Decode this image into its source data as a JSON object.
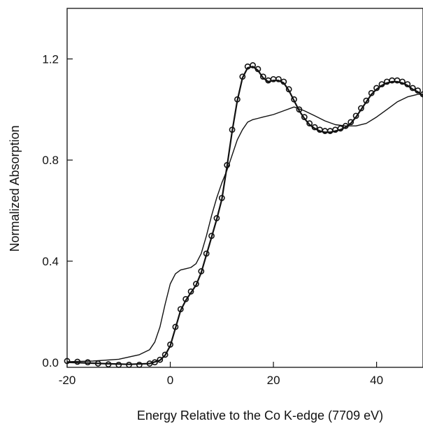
{
  "chart_data": {
    "type": "line",
    "title": "",
    "xlabel": "Energy Relative to the Co K-edge (7709 eV)",
    "ylabel": "Normalized Absorption",
    "xlim": [
      -20,
      49
    ],
    "ylim": [
      -0.02,
      1.4
    ],
    "xticks": [
      -20,
      0,
      20,
      40
    ],
    "xtick_labels": [
      "-20",
      "0",
      "20",
      "40"
    ],
    "yticks": [
      0.0,
      0.4,
      0.8,
      1.2
    ],
    "ytick_labels": [
      "0.0",
      "0.4",
      "0.8",
      "1.2"
    ],
    "grid": false,
    "legend": "none",
    "series": [
      {
        "style": "line",
        "color": "#111111",
        "x": [
          -20,
          -15,
          -10,
          -6,
          -4,
          -3,
          -2,
          -1,
          0,
          1,
          2,
          3,
          4,
          5,
          6,
          7,
          8,
          9,
          10,
          11,
          12,
          13,
          14,
          15,
          16,
          17,
          18,
          19,
          20,
          22,
          24,
          26,
          28,
          30,
          32,
          34,
          36,
          38,
          40,
          42,
          44,
          46,
          48,
          49
        ],
        "values": [
          0.002,
          0.005,
          0.012,
          0.03,
          0.05,
          0.08,
          0.14,
          0.23,
          0.31,
          0.35,
          0.365,
          0.37,
          0.375,
          0.39,
          0.43,
          0.5,
          0.58,
          0.65,
          0.71,
          0.76,
          0.82,
          0.88,
          0.92,
          0.95,
          0.96,
          0.965,
          0.97,
          0.975,
          0.98,
          0.995,
          1.01,
          0.995,
          0.975,
          0.955,
          0.94,
          0.935,
          0.935,
          0.945,
          0.97,
          1.0,
          1.03,
          1.05,
          1.06,
          1.06
        ]
      },
      {
        "style": "markers",
        "color": "#111111",
        "x": [
          -20,
          -18,
          -16,
          -14,
          -12,
          -10,
          -8,
          -6,
          -4,
          -3,
          -2,
          -1,
          0,
          1,
          2,
          3,
          4,
          5,
          6,
          7,
          8,
          9,
          10,
          11,
          12,
          13,
          14,
          15,
          16,
          17,
          18,
          19,
          20,
          21,
          22,
          23,
          24,
          25,
          26,
          27,
          28,
          29,
          30,
          31,
          32,
          33,
          34,
          35,
          36,
          37,
          38,
          39,
          40,
          41,
          42,
          43,
          44,
          45,
          46,
          47,
          48,
          49
        ],
        "values": [
          0.005,
          0.002,
          0.0,
          -0.005,
          -0.008,
          -0.01,
          -0.01,
          -0.01,
          -0.005,
          0.0,
          0.01,
          0.03,
          0.07,
          0.14,
          0.21,
          0.25,
          0.28,
          0.31,
          0.36,
          0.43,
          0.5,
          0.57,
          0.65,
          0.78,
          0.92,
          1.04,
          1.13,
          1.17,
          1.175,
          1.16,
          1.13,
          1.115,
          1.12,
          1.12,
          1.11,
          1.08,
          1.04,
          1.0,
          0.97,
          0.945,
          0.93,
          0.92,
          0.915,
          0.915,
          0.92,
          0.925,
          0.935,
          0.95,
          0.975,
          1.005,
          1.035,
          1.065,
          1.085,
          1.1,
          1.11,
          1.115,
          1.115,
          1.11,
          1.1,
          1.085,
          1.075,
          1.06
        ]
      },
      {
        "style": "line",
        "color": "#111111",
        "x": [
          -20,
          -16,
          -12,
          -8,
          -4,
          -2,
          -1,
          0,
          1,
          2,
          3,
          4,
          5,
          6,
          7,
          8,
          9,
          10,
          11,
          12,
          13,
          14,
          15,
          16,
          17,
          18,
          19,
          20,
          21,
          22,
          23,
          24,
          25,
          26,
          27,
          28,
          29,
          30,
          31,
          32,
          33,
          34,
          35,
          36,
          37,
          38,
          39,
          40,
          41,
          42,
          43,
          44,
          45,
          46,
          47,
          48,
          49
        ],
        "values": [
          0.0,
          -0.003,
          -0.006,
          -0.008,
          -0.005,
          0.008,
          0.028,
          0.065,
          0.135,
          0.205,
          0.245,
          0.275,
          0.305,
          0.355,
          0.425,
          0.495,
          0.565,
          0.645,
          0.775,
          0.915,
          1.035,
          1.125,
          1.165,
          1.17,
          1.155,
          1.125,
          1.11,
          1.115,
          1.115,
          1.105,
          1.075,
          1.035,
          0.995,
          0.965,
          0.94,
          0.925,
          0.915,
          0.91,
          0.91,
          0.915,
          0.92,
          0.93,
          0.945,
          0.97,
          1.0,
          1.03,
          1.06,
          1.08,
          1.095,
          1.105,
          1.11,
          1.11,
          1.105,
          1.095,
          1.08,
          1.07,
          1.055
        ]
      }
    ]
  }
}
